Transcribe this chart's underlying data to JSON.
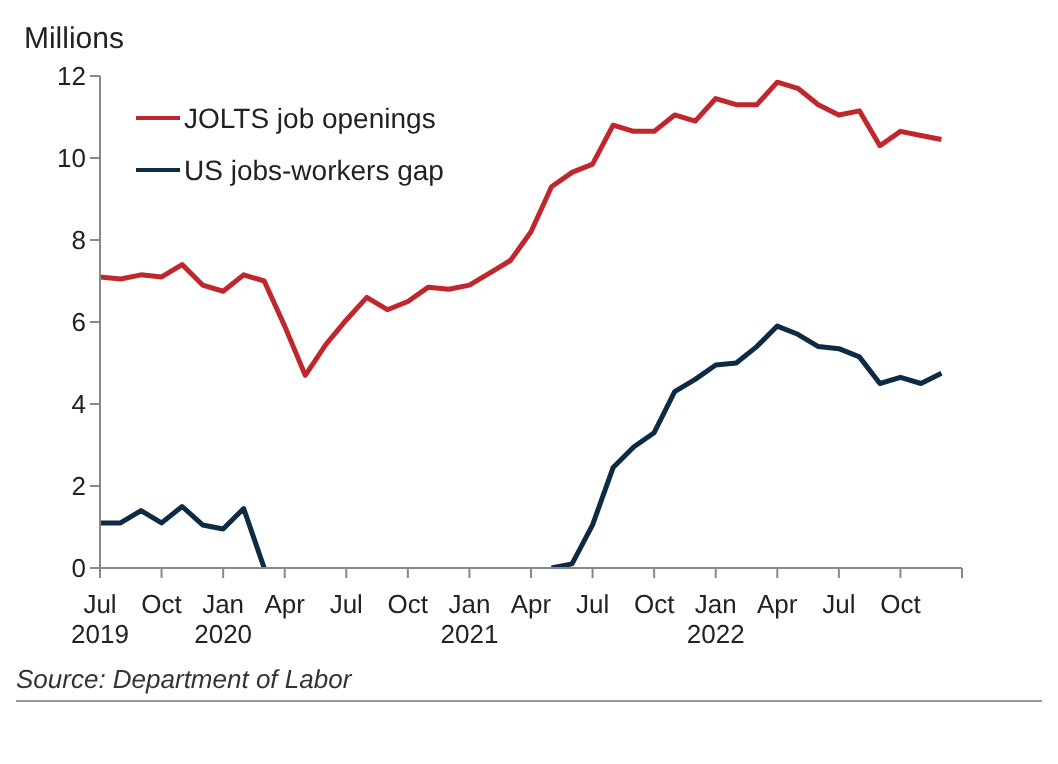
{
  "chart_data": {
    "type": "line",
    "ylabel": "Millions",
    "x": [
      "2019-07",
      "2019-08",
      "2019-09",
      "2019-10",
      "2019-11",
      "2019-12",
      "2020-01",
      "2020-02",
      "2020-03",
      "2020-04",
      "2020-05",
      "2020-06",
      "2020-07",
      "2020-08",
      "2020-09",
      "2020-10",
      "2020-11",
      "2020-12",
      "2021-01",
      "2021-02",
      "2021-03",
      "2021-04",
      "2021-05",
      "2021-06",
      "2021-07",
      "2021-08",
      "2021-09",
      "2021-10",
      "2021-11",
      "2021-12",
      "2022-01",
      "2022-02",
      "2022-03",
      "2022-04",
      "2022-05",
      "2022-06",
      "2022-07",
      "2022-08",
      "2022-09",
      "2022-10",
      "2022-11",
      "2022-12"
    ],
    "series": [
      {
        "name": "JOLTS job openings",
        "color": "#c0272d",
        "values": [
          7.1,
          7.05,
          7.15,
          7.1,
          7.4,
          6.9,
          6.75,
          7.15,
          7.0,
          5.9,
          4.7,
          5.45,
          6.05,
          6.6,
          6.3,
          6.5,
          6.85,
          6.8,
          6.9,
          7.2,
          7.5,
          8.2,
          9.3,
          9.65,
          9.85,
          10.8,
          10.65,
          10.65,
          11.05,
          10.9,
          11.45,
          11.3,
          11.3,
          11.85,
          11.7,
          11.3,
          11.05,
          11.15,
          10.3,
          10.65,
          10.55,
          10.45
        ]
      },
      {
        "name": "US jobs-workers gap",
        "color": "#0d2b45",
        "values": [
          1.1,
          1.1,
          1.4,
          1.1,
          1.5,
          1.05,
          0.95,
          1.45,
          0,
          null,
          null,
          null,
          null,
          null,
          null,
          null,
          null,
          null,
          null,
          null,
          null,
          null,
          0,
          0.1,
          1.05,
          2.45,
          2.95,
          3.3,
          4.3,
          4.6,
          4.95,
          5.0,
          5.4,
          5.9,
          5.7,
          5.4,
          5.35,
          5.15,
          4.5,
          4.65,
          4.5,
          4.75
        ]
      }
    ],
    "xlim": [
      "2019-07",
      "2023-01"
    ],
    "xticks": [
      {
        "value": "2019-07",
        "label": "Jul 2019"
      },
      {
        "value": "2019-10",
        "label": "Oct"
      },
      {
        "value": "2020-01",
        "label": "Jan 2020"
      },
      {
        "value": "2020-04",
        "label": "Apr"
      },
      {
        "value": "2020-07",
        "label": "Jul"
      },
      {
        "value": "2020-10",
        "label": "Oct"
      },
      {
        "value": "2021-01",
        "label": "Jan 2021"
      },
      {
        "value": "2021-04",
        "label": "Apr"
      },
      {
        "value": "2021-07",
        "label": "Jul"
      },
      {
        "value": "2021-10",
        "label": "Oct"
      },
      {
        "value": "2022-01",
        "label": "Jan 2022"
      },
      {
        "value": "2022-04",
        "label": "Apr"
      },
      {
        "value": "2022-07",
        "label": "Jul"
      },
      {
        "value": "2022-10",
        "label": "Oct"
      },
      {
        "value": "2023-01",
        "label": null
      }
    ],
    "ylim": [
      0,
      12
    ],
    "yticks": [
      0,
      2,
      4,
      6,
      8,
      10,
      12
    ],
    "grid": false,
    "legend": "top left",
    "annotations": [
      "Source: Department of Labor"
    ]
  }
}
